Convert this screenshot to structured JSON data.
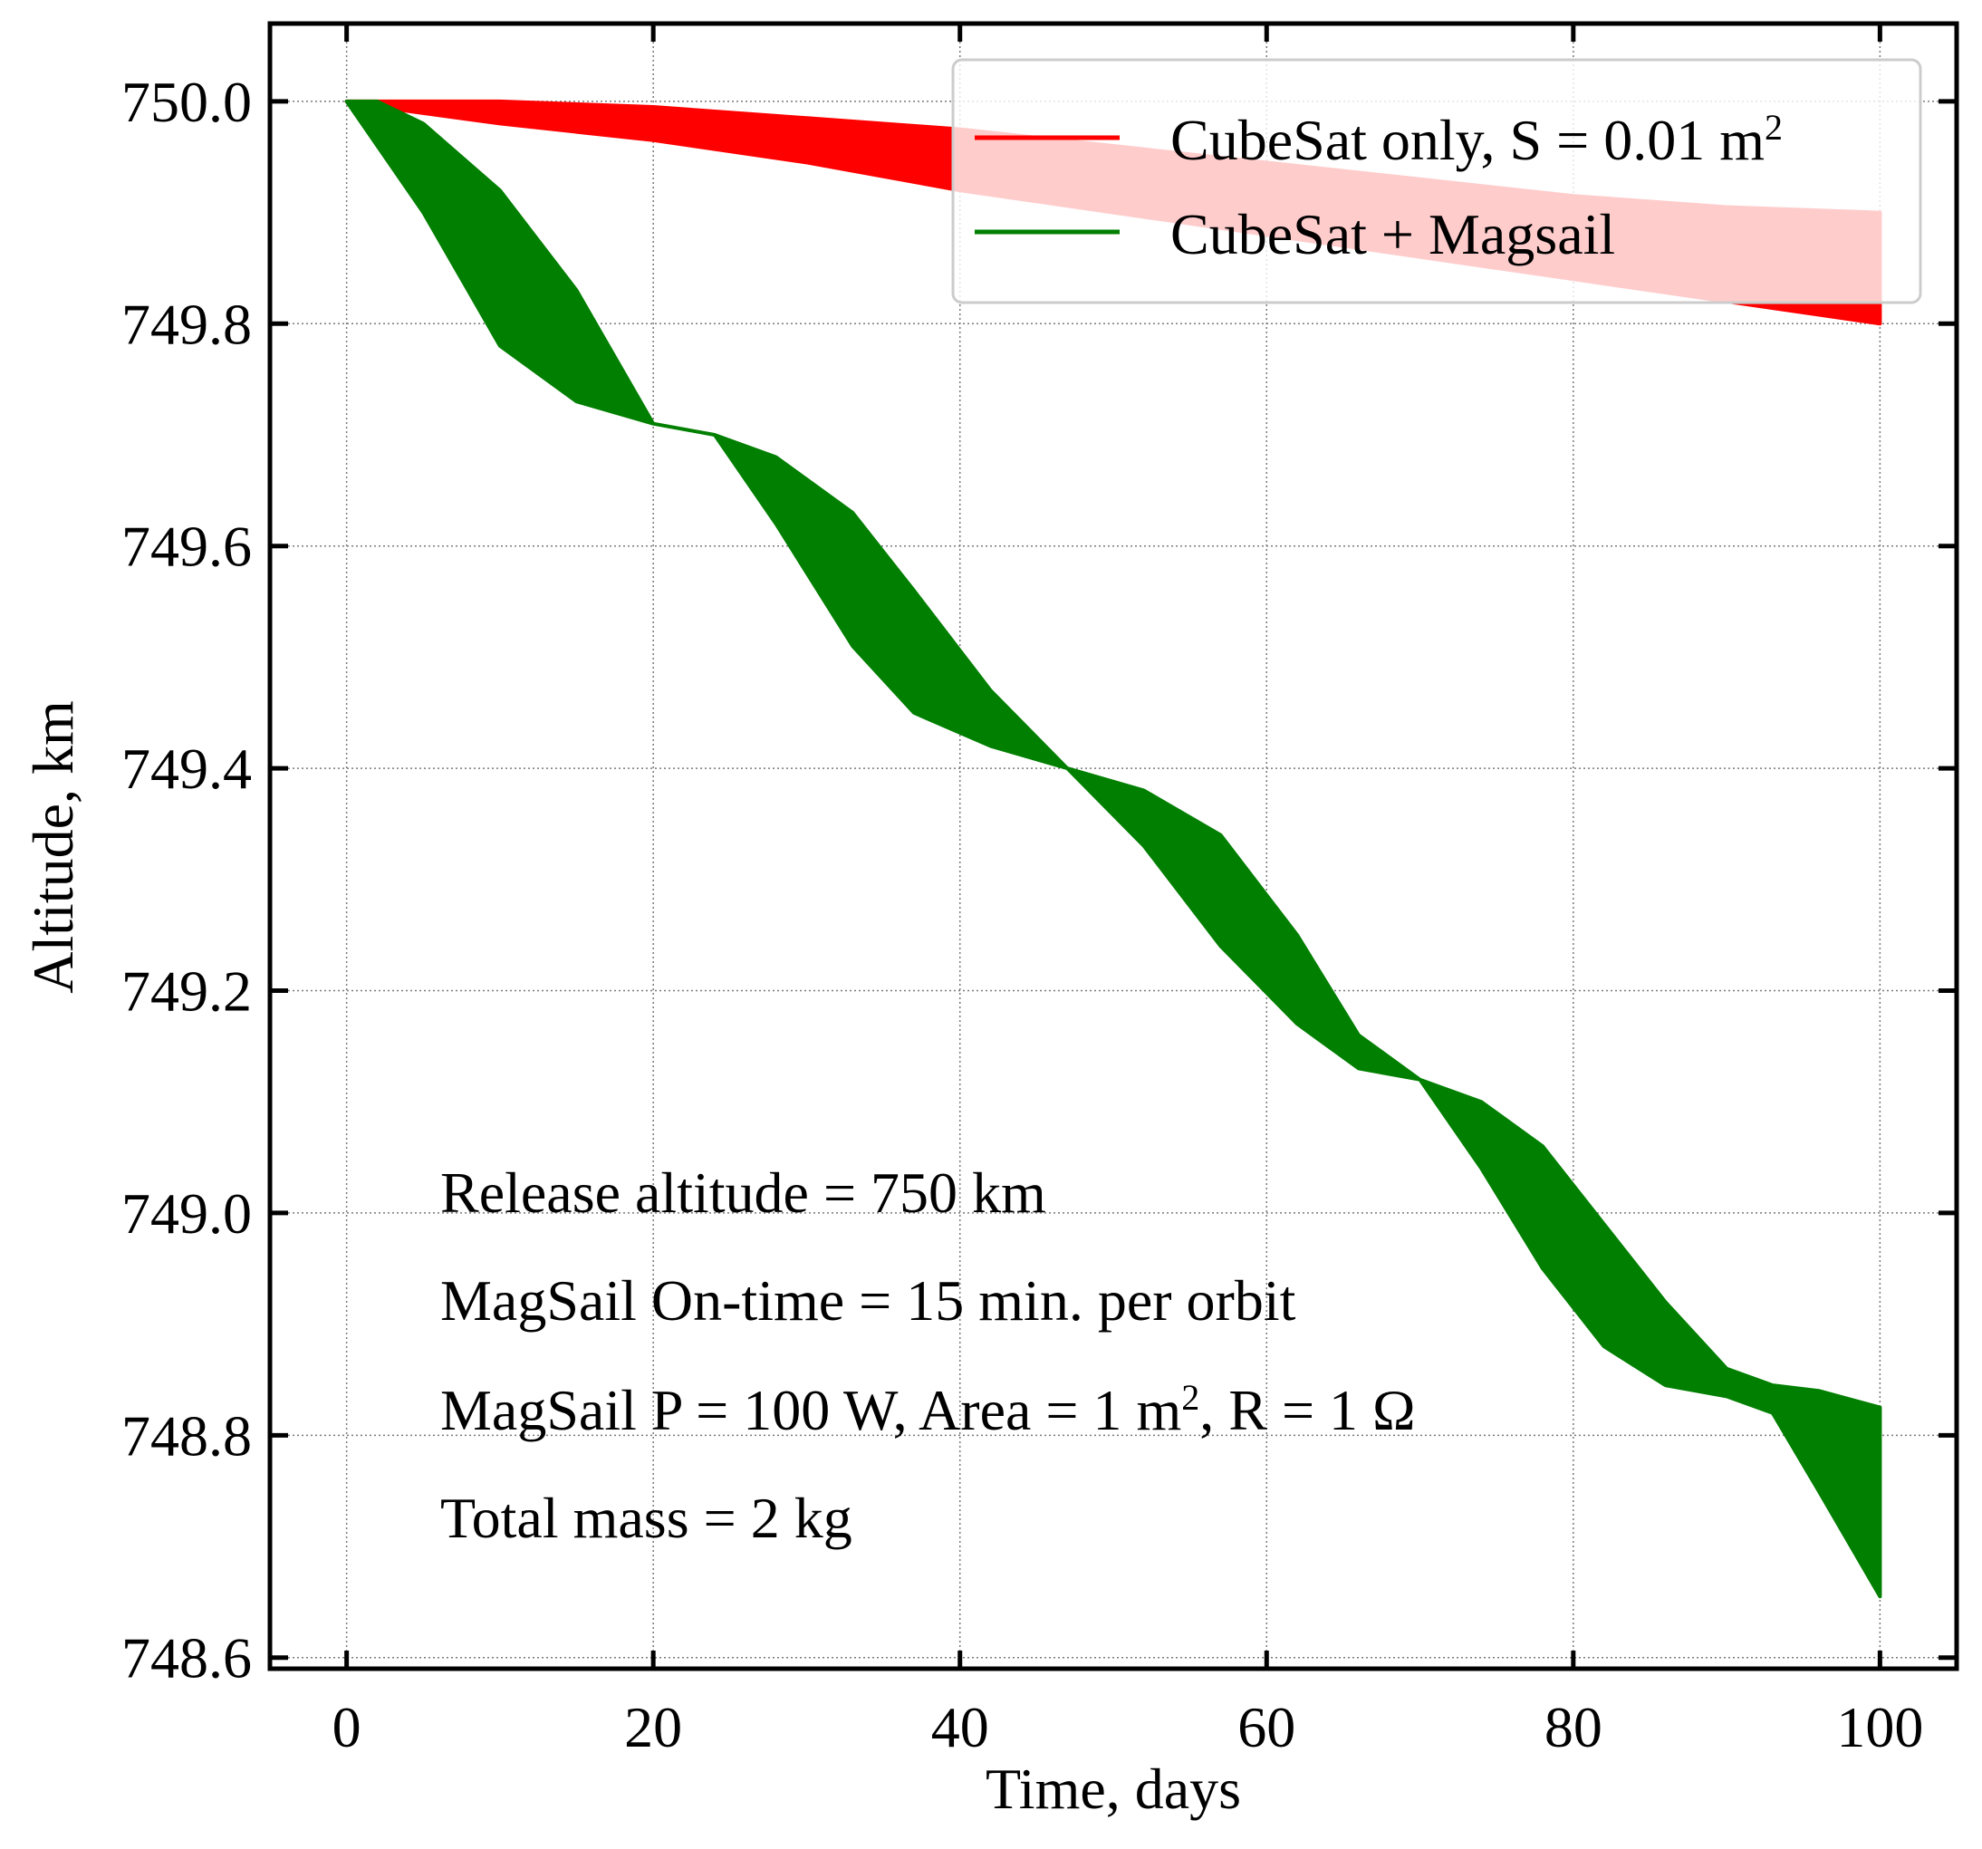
{
  "chart_data": {
    "type": "area",
    "xlabel": "Time, days",
    "ylabel": "Altitude, km",
    "xlim": [
      -5,
      105
    ],
    "ylim": [
      748.59,
      750.07
    ],
    "xticks": [
      0,
      20,
      40,
      60,
      80,
      100
    ],
    "yticks": [
      748.6,
      748.8,
      749.0,
      749.2,
      749.4,
      749.6,
      749.8,
      750.0
    ],
    "xtick_labels": [
      "0",
      "20",
      "40",
      "60",
      "80",
      "100"
    ],
    "ytick_labels": [
      "748.6",
      "748.8",
      "749.0",
      "749.2",
      "749.4",
      "749.6",
      "749.8",
      "750.0"
    ],
    "grid": true,
    "legend_position": "top-right",
    "series": [
      {
        "name": "CubeSat only, S = 0.01 m²",
        "name_base": "CubeSat only, S = 0.01 m",
        "name_sup": "2",
        "color": "#ff0000",
        "x": [
          0,
          2,
          10,
          20,
          30,
          40,
          50,
          60,
          70,
          80,
          90,
          100
        ],
        "upper": [
          750.0,
          750.0,
          750.0,
          749.995,
          749.985,
          749.975,
          749.96,
          749.945,
          749.93,
          749.915,
          749.905,
          749.9
        ],
        "lower": [
          750.0,
          749.995,
          749.98,
          749.965,
          749.945,
          749.92,
          749.9,
          749.88,
          749.86,
          749.84,
          749.82,
          749.8
        ]
      },
      {
        "name": "CubeSat + Magsail",
        "color": "#007f00",
        "x": [
          0,
          2,
          5,
          10,
          15,
          20,
          24,
          28,
          33,
          37,
          42,
          47,
          52,
          57,
          62,
          66,
          70,
          74,
          78,
          82,
          86,
          90,
          93,
          96,
          100
        ],
        "upper": [
          750.0,
          750.0,
          749.98,
          749.92,
          749.83,
          749.71,
          749.7,
          749.68,
          749.63,
          749.56,
          749.47,
          749.4,
          749.38,
          749.34,
          749.25,
          749.16,
          749.12,
          749.1,
          749.06,
          748.99,
          748.92,
          748.86,
          748.845,
          748.84,
          748.825
        ],
        "lower": [
          750.0,
          749.96,
          749.9,
          749.78,
          749.73,
          749.71,
          749.7,
          749.62,
          749.51,
          749.45,
          749.42,
          749.4,
          749.33,
          749.24,
          749.17,
          749.13,
          749.12,
          749.04,
          748.95,
          748.88,
          748.845,
          748.835,
          748.82,
          748.75,
          748.655
        ]
      }
    ],
    "annotations": [
      {
        "text": "Release altitude = 750 km"
      },
      {
        "text": "MagSail On-time = 15 min. per orbit"
      },
      {
        "text_parts": [
          "MagSail P = 100 W, Area = 1 m",
          "2",
          ", R = 1 Ω"
        ],
        "text": "MagSail P = 100 W, Area = 1 m², R = 1 Ω"
      },
      {
        "text": "Total mass = 2 kg"
      }
    ]
  }
}
